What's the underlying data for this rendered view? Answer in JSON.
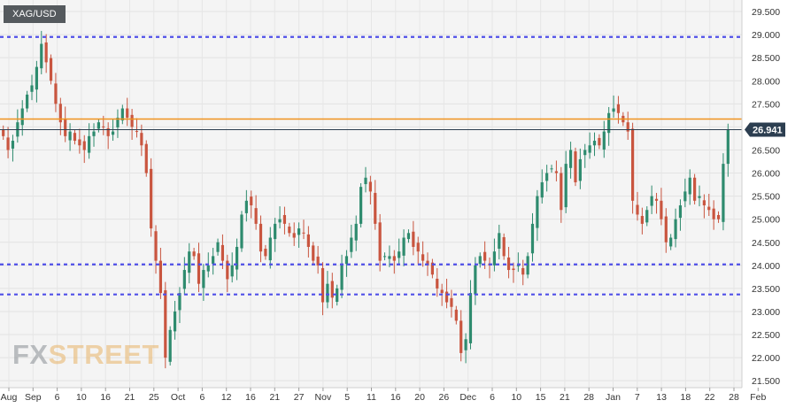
{
  "symbol": "XAG/USD",
  "brand": {
    "part1": "FX",
    "part2": "STREET"
  },
  "colors": {
    "up": "#2e8b6e",
    "down": "#c9553f",
    "level": "#4f4fe8",
    "resistance": "#f0921c",
    "price_tag": "#2c3e50"
  },
  "chart_data": {
    "type": "candlestick",
    "title": "XAG/USD",
    "x_ticks": [
      "Aug",
      "Sep",
      "6",
      "10",
      "16",
      "21",
      "25",
      "Oct",
      "6",
      "12",
      "16",
      "21",
      "27",
      "Nov",
      "5",
      "11",
      "16",
      "20",
      "26",
      "Dec",
      "6",
      "10",
      "15",
      "21",
      "28",
      "Jan",
      "7",
      "13",
      "18",
      "22",
      "28",
      "Feb"
    ],
    "y_ticks": [
      "29.500",
      "29.000",
      "28.500",
      "28.000",
      "27.500",
      "27.000",
      "26.500",
      "26.000",
      "25.500",
      "25.000",
      "24.500",
      "24.000",
      "23.500",
      "23.000",
      "22.500",
      "22.000",
      "21.500"
    ],
    "ylim": [
      21.35,
      29.75
    ],
    "last_price": "26.941",
    "horizontal_levels": [
      28.95,
      24.02,
      23.37
    ],
    "resistance_level": 27.17,
    "close_series": [
      26.8,
      26.5,
      26.7,
      27.1,
      27.4,
      27.7,
      27.9,
      28.3,
      28.8,
      28.4,
      28.0,
      27.5,
      27.1,
      26.8,
      26.9,
      26.7,
      26.6,
      26.5,
      26.8,
      26.9,
      27.1,
      27.0,
      26.8,
      26.9,
      27.2,
      27.4,
      27.2,
      27.0,
      26.9,
      26.6,
      26.0,
      24.8,
      24.1,
      23.4,
      22.0,
      22.6,
      23.0,
      23.4,
      23.9,
      24.3,
      24.2,
      23.6,
      23.9,
      24.0,
      24.2,
      24.5,
      24.1,
      23.7,
      24.0,
      24.4,
      25.1,
      25.4,
      25.3,
      24.9,
      24.3,
      24.2,
      24.6,
      24.9,
      25.0,
      24.9,
      24.7,
      24.6,
      24.8,
      24.7,
      24.4,
      24.1,
      24.0,
      23.2,
      23.6,
      23.3,
      23.5,
      24.0,
      24.2,
      24.6,
      24.9,
      25.7,
      25.9,
      25.6,
      24.9,
      24.1,
      24.2,
      24.2,
      24.1,
      24.3,
      24.6,
      24.7,
      24.4,
      24.3,
      24.1,
      24.0,
      23.8,
      23.5,
      23.4,
      23.2,
      23.1,
      22.8,
      22.1,
      22.4,
      23.4,
      24.0,
      24.2,
      24.1,
      24.0,
      24.3,
      24.7,
      24.2,
      23.9,
      23.9,
      24.0,
      23.8,
      24.2,
      24.9,
      25.5,
      25.8,
      26.0,
      26.1,
      26.0,
      25.2,
      26.2,
      26.5,
      25.8,
      26.3,
      26.5,
      26.6,
      26.7,
      26.6,
      26.9,
      27.3,
      27.4,
      27.3,
      27.1,
      26.9,
      25.4,
      25.1,
      24.9,
      25.2,
      25.5,
      25.4,
      25.0,
      24.5,
      24.6,
      25.0,
      25.3,
      25.6,
      25.9,
      25.4,
      25.5,
      25.3,
      25.2,
      25.0,
      25.0,
      26.2,
      26.94
    ]
  }
}
